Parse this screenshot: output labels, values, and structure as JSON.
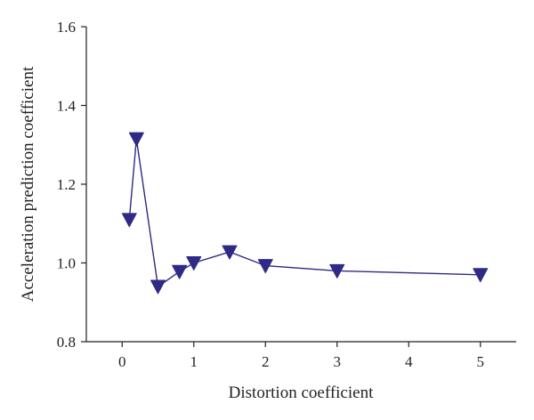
{
  "chart_data": {
    "type": "line",
    "xlabel": "Distortion coefficient",
    "ylabel": "Acceleration prediction coefficient",
    "xlim": [
      -0.5,
      5.5
    ],
    "ylim": [
      0.8,
      1.6
    ],
    "x_ticks": [
      0,
      1,
      2,
      3,
      4,
      5
    ],
    "y_ticks": [
      0.8,
      1.0,
      1.2,
      1.4,
      1.6
    ],
    "x_tick_labels": [
      "0",
      "1",
      "2",
      "3",
      "4",
      "5"
    ],
    "y_tick_labels": [
      "0.8",
      "1.0",
      "1.2",
      "1.4",
      "1.6"
    ],
    "grid": false,
    "marker": "triangle-down",
    "series": [
      {
        "color": "#2e2a85",
        "x": [
          0.1,
          0.2,
          0.5,
          0.8,
          1.0,
          1.5,
          2.0,
          3.0,
          5.0
        ],
        "y": [
          1.11,
          1.315,
          0.94,
          0.978,
          1.0,
          1.028,
          0.993,
          0.98,
          0.97
        ]
      }
    ]
  }
}
